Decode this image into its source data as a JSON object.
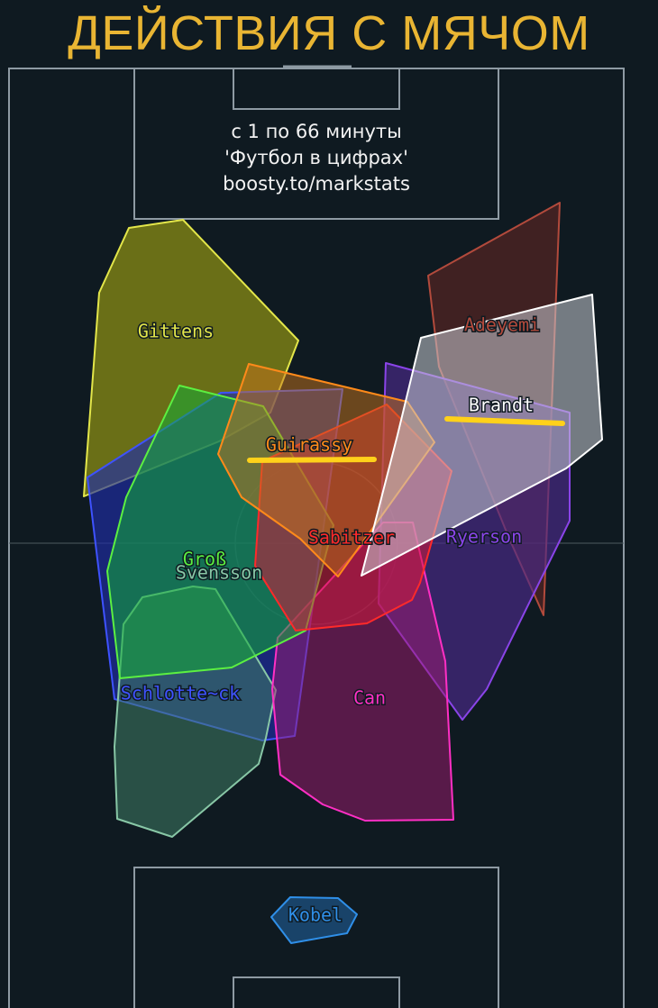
{
  "title": "ДЕЙСТВИЯ С МЯЧОМ",
  "subtitle": {
    "line1": "с 1 по 66 минуты",
    "line2": "'Футбол в цифрах'",
    "line3": "boosty.to/markstats"
  },
  "colors": {
    "background": "#0f1a21",
    "pitch_lines": "#8e9aa3",
    "title": "#e9b533",
    "highlight": "#ffd11a"
  },
  "chart_data": {
    "type": "other",
    "title": "ДЕЙСТВИЯ С МЯЧОМ",
    "players": [
      {
        "name": "Gittens",
        "color": "#e3e64a",
        "fill": "#8a8c14",
        "opacity": 0.75,
        "highlight": false
      },
      {
        "name": "Adeyemi",
        "color": "#b24a3c",
        "fill": "#6a2824",
        "opacity": 0.55,
        "highlight": false
      },
      {
        "name": "Schlotte~ck",
        "color": "#3e52ff",
        "fill": "#1f2ca8",
        "opacity": 0.65,
        "highlight": false
      },
      {
        "name": "Ryerson",
        "color": "#8a44e8",
        "fill": "#4b2a8c",
        "opacity": 0.65,
        "highlight": false
      },
      {
        "name": "Svensson",
        "color": "#88c7a6",
        "fill": "#3f7d66",
        "opacity": 0.55,
        "highlight": false
      },
      {
        "name": "Can",
        "color": "#ff2fc4",
        "fill": "#a21a72",
        "opacity": 0.5,
        "highlight": false
      },
      {
        "name": "Groß",
        "color": "#5cf041",
        "fill": "#12ad36",
        "opacity": 0.55,
        "highlight": false
      },
      {
        "name": "Sabitzer",
        "color": "#ff2a2a",
        "fill": "#d11a3a",
        "opacity": 0.55,
        "highlight": false
      },
      {
        "name": "Guirassy",
        "color": "#ff8a1a",
        "fill": "#c7741c",
        "opacity": 0.5,
        "highlight": true
      },
      {
        "name": "Brandt",
        "color": "#ffffff",
        "fill": "#c9ccd4",
        "opacity": 0.55,
        "highlight": true
      },
      {
        "name": "Kobel",
        "color": "#2f8fe8",
        "fill": "#1c4d7c",
        "opacity": 0.8,
        "highlight": false
      }
    ]
  }
}
